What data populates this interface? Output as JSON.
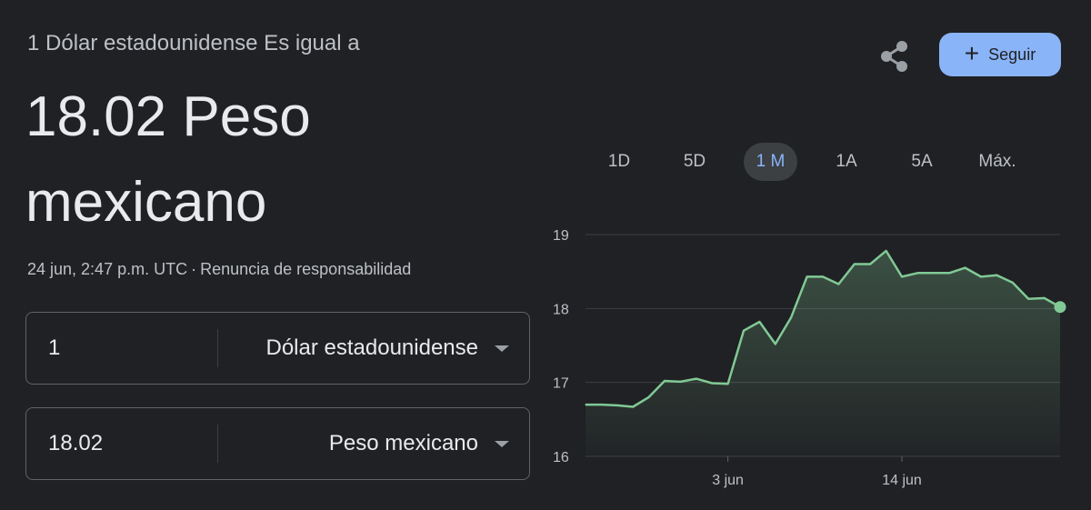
{
  "header": {
    "subtitle": "1 Dólar estadounidense Es igual a",
    "value_line1": "18.02 Peso",
    "value_line2": "mexicano",
    "timestamp": "24 jun, 2:47 p.m. UTC",
    "separator": "·",
    "disclaimer": "Renuncia de responsabilidad"
  },
  "actions": {
    "share_icon": "share-icon",
    "follow_label": "Seguir",
    "follow_icon": "+"
  },
  "converter": {
    "from": {
      "amount": "1",
      "unit": "Dólar estadounidense"
    },
    "to": {
      "amount": "18.02",
      "unit": "Peso mexicano"
    }
  },
  "ranges": {
    "items": [
      "1D",
      "5D",
      "1 M",
      "1A",
      "5A",
      "Máx."
    ],
    "active": "1 M"
  },
  "colors": {
    "background": "#202124",
    "accent": "#8ab4f8",
    "line": "#81c995"
  },
  "chart_data": {
    "type": "area",
    "title": "",
    "xlabel": "",
    "ylabel": "",
    "y_ticks": [
      16,
      17,
      18,
      19
    ],
    "ylim": [
      16,
      19
    ],
    "x_ticks": [
      {
        "label": "3 jun",
        "day": 3
      },
      {
        "label": "14 jun",
        "day": 14
      }
    ],
    "grid": true,
    "series": [
      {
        "x": [
          -6,
          -5,
          -4,
          -3,
          -2,
          -1,
          0,
          1,
          2,
          3,
          4,
          5,
          6,
          7,
          8,
          9,
          10,
          11,
          12,
          13,
          14,
          15,
          16,
          17,
          18,
          19,
          20,
          21,
          22,
          23,
          24
        ],
        "values": [
          16.7,
          16.7,
          16.69,
          16.67,
          16.8,
          17.02,
          17.01,
          17.05,
          16.99,
          16.98,
          17.7,
          17.82,
          17.52,
          17.88,
          18.43,
          18.43,
          18.33,
          18.6,
          18.6,
          18.78,
          18.43,
          18.48,
          18.48,
          18.48,
          18.55,
          18.43,
          18.45,
          18.35,
          18.13,
          18.14,
          18.02
        ]
      }
    ]
  }
}
